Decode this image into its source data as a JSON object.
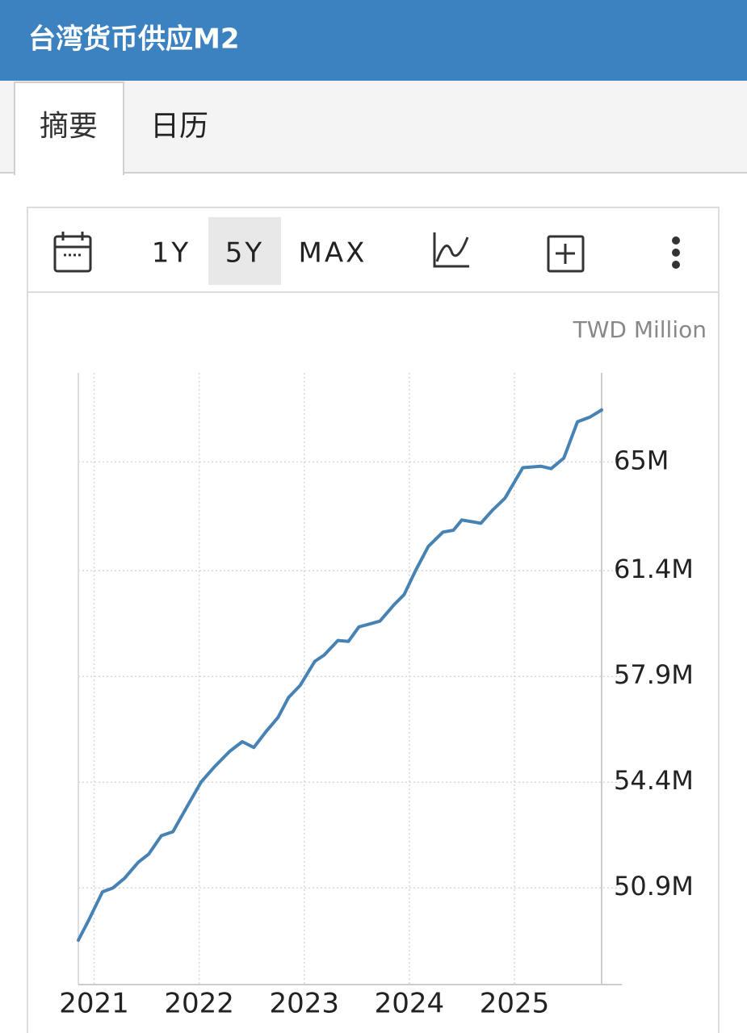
{
  "header": {
    "title": "台湾货币供应M2"
  },
  "tabs": [
    "摘要",
    "日历"
  ],
  "toolbar": {
    "ranges": [
      "1Y",
      "5Y",
      "MAX"
    ]
  },
  "chart_data": {
    "type": "line",
    "unit": "TWD Million",
    "color": "#4682b4",
    "grid": true,
    "x": [
      2020.85,
      2020.95,
      2021.08,
      2021.18,
      2021.29,
      2021.42,
      2021.52,
      2021.64,
      2021.75,
      2021.88,
      2022.02,
      2022.14,
      2022.29,
      2022.41,
      2022.52,
      2022.64,
      2022.75,
      2022.85,
      2022.96,
      2023.1,
      2023.19,
      2023.32,
      2023.42,
      2023.52,
      2023.72,
      2023.85,
      2023.95,
      2024.06,
      2024.18,
      2024.32,
      2024.42,
      2024.5,
      2024.68,
      2024.79,
      2024.91,
      2025.08,
      2025.25,
      2025.35,
      2025.47,
      2025.6,
      2025.72,
      2025.83
    ],
    "values": [
      49170000,
      49840000,
      50770000,
      50900000,
      51220000,
      51750000,
      52020000,
      52630000,
      52760000,
      53560000,
      54410000,
      54890000,
      55420000,
      55740000,
      55550000,
      56090000,
      56540000,
      57200000,
      57600000,
      58400000,
      58610000,
      59090000,
      59060000,
      59540000,
      59730000,
      60260000,
      60610000,
      61410000,
      62200000,
      62680000,
      62740000,
      63080000,
      62970000,
      63400000,
      63800000,
      64810000,
      64860000,
      64780000,
      65130000,
      66330000,
      66490000,
      66720000
    ],
    "xlim": [
      2020.85,
      2025.83
    ],
    "xticks": [
      2021,
      2022,
      2023,
      2024,
      2025
    ],
    "ylim": [
      47700000,
      67950000
    ],
    "yticks": [
      {
        "value": 50900000,
        "label": "50.9M"
      },
      {
        "value": 54400000,
        "label": "54.4M"
      },
      {
        "value": 57900000,
        "label": "57.9M"
      },
      {
        "value": 61400000,
        "label": "61.4M"
      },
      {
        "value": 65000000,
        "label": "65M"
      }
    ]
  }
}
